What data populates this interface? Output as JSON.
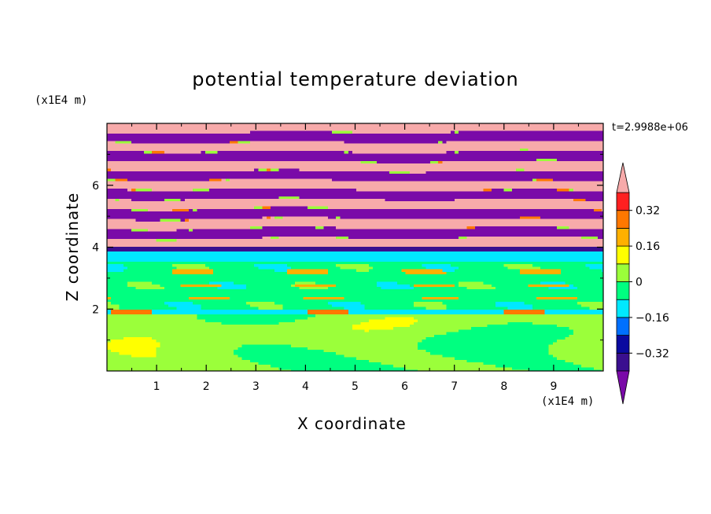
{
  "chart_data": {
    "type": "heatmap",
    "title": "potential temperature deviation",
    "xlabel": "X coordinate",
    "ylabel": "Z coordinate",
    "x_unit": "(x1E4 m)",
    "y_unit": "(x1E4 m)",
    "timestamp": "t=2.9988e+06",
    "xlim": [
      0,
      10
    ],
    "ylim": [
      0,
      8
    ],
    "x_ticks": [
      "1",
      "2",
      "3",
      "4",
      "5",
      "6",
      "7",
      "8",
      "9"
    ],
    "y_ticks": [
      "2",
      "4",
      "6"
    ],
    "colorbar": {
      "tick_labels": [
        "0.32",
        "0.16",
        "0",
        "−0.16",
        "−0.32"
      ],
      "levels": [
        -0.4,
        -0.32,
        -0.24,
        -0.16,
        -0.08,
        0,
        0.08,
        0.16,
        0.24,
        0.32,
        0.4
      ],
      "colors": [
        "#3a0f8f",
        "#0a0aa0",
        "#0070ff",
        "#00e8ff",
        "#00ff80",
        "#9bff3a",
        "#ffff00",
        "#ffb000",
        "#ff7800",
        "#ff2020"
      ],
      "under_color": "#7a0aa8",
      "over_color": "#f7aaaa",
      "extend": "both"
    },
    "regions": [
      {
        "z_range": [
          4.0,
          8.0
        ],
        "description_value": "alternating bands of over (> 0.4) and under (< -0.4)"
      },
      {
        "z_range": [
          3.8,
          4.0
        ],
        "description_value": -0.35
      },
      {
        "z_range": [
          3.5,
          3.8
        ],
        "description_value": -0.12
      },
      {
        "z_range": [
          2.0,
          3.5
        ],
        "description_value": -0.04
      },
      {
        "z_range": [
          0.0,
          2.0
        ],
        "description_value": 0.03
      }
    ]
  }
}
